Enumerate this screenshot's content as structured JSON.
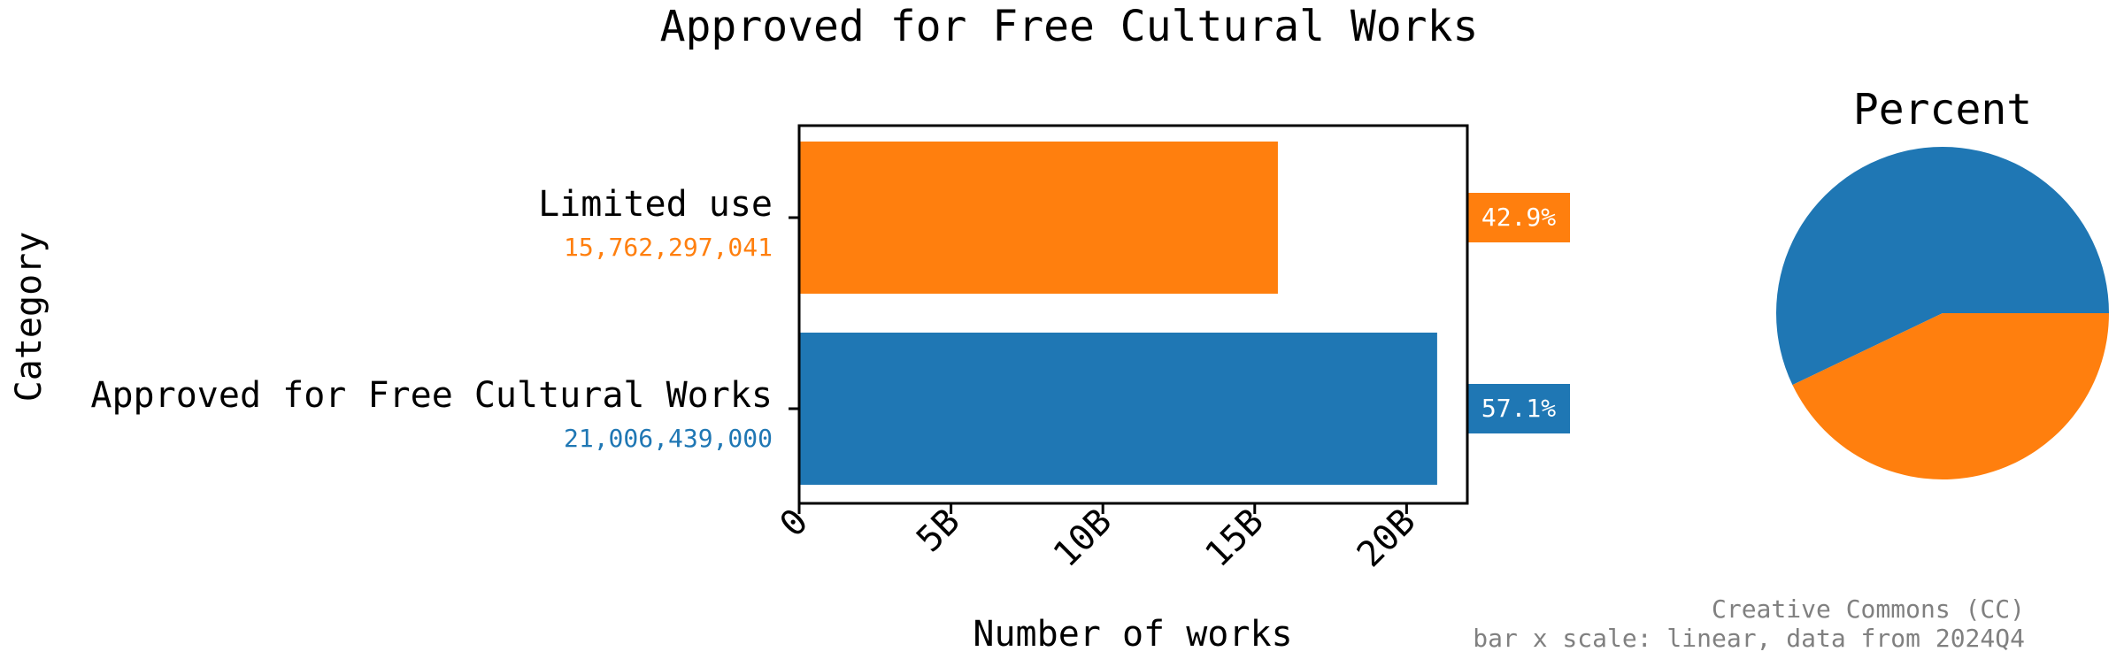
{
  "chart_data": [
    {
      "type": "bar",
      "orientation": "horizontal",
      "title": "Approved for Free Cultural Works",
      "xlabel": "Number of works",
      "ylabel": "Category",
      "categories": [
        "Limited use",
        "Approved for Free Cultural Works"
      ],
      "values": [
        15762297041,
        21006439000
      ],
      "value_labels": [
        "15,762,297,041",
        "21,006,439,000"
      ],
      "percent_labels": [
        "42.9%",
        "57.1%"
      ],
      "colors": [
        "#ff7f0e",
        "#1f77b4"
      ],
      "xlim": [
        0,
        22000000000
      ],
      "xticks": [
        0,
        5000000000,
        10000000000,
        15000000000,
        20000000000
      ],
      "xtick_labels": [
        "0",
        "5B",
        "10B",
        "15B",
        "20B"
      ],
      "xscale": "linear",
      "grid": false,
      "legend": "none"
    },
    {
      "type": "pie",
      "title": "Percent",
      "labels": [
        "Approved for Free Cultural Works",
        "Limited use"
      ],
      "values": [
        57.1,
        42.9
      ],
      "colors": [
        "#1f77b4",
        "#ff7f0e"
      ]
    }
  ],
  "footer": {
    "line1": "Creative Commons (CC)",
    "line2": "bar x scale: linear, data from 2024Q4"
  }
}
